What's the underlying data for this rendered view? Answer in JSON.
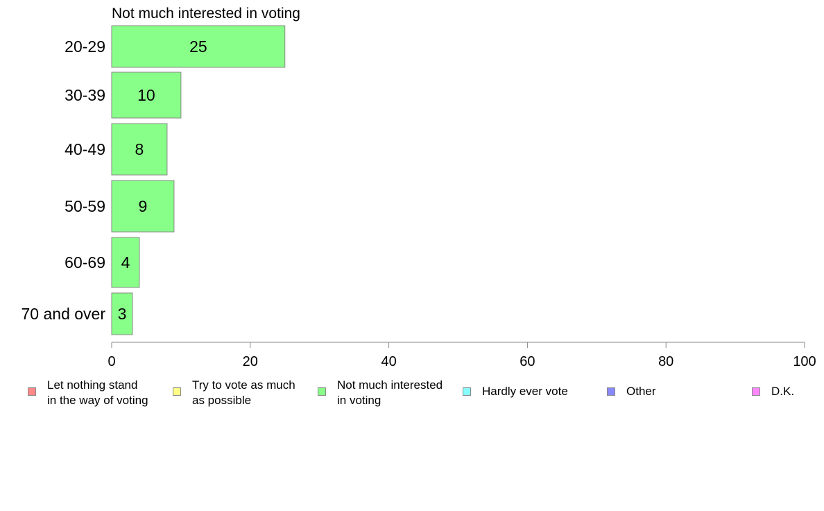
{
  "chart_data": {
    "type": "bar",
    "orientation": "horizontal",
    "title": "Not much interested in voting",
    "categories": [
      "20-29",
      "30-39",
      "40-49",
      "50-59",
      "60-69",
      "70 and over"
    ],
    "values": [
      25,
      10,
      8,
      9,
      4,
      3
    ],
    "value_labels": [
      "25",
      "10",
      "8",
      "9",
      "4",
      "3"
    ],
    "xlim": [
      0,
      100
    ],
    "xticks": [
      "0",
      "20",
      "40",
      "60",
      "80",
      "100"
    ],
    "xtick_values": [
      0,
      20,
      40,
      60,
      80,
      100
    ],
    "bar_color": "#88ff88",
    "grid": false,
    "legend_position": "bottom",
    "legend": [
      {
        "label": "Let nothing stand\nin the way of voting",
        "color": "#ff8888"
      },
      {
        "label": "Try to vote as much\nas possible",
        "color": "#ffff88"
      },
      {
        "label": "Not much interested\nin voting",
        "color": "#88ff88"
      },
      {
        "label": "Hardly ever vote",
        "color": "#88ffff"
      },
      {
        "label": "Other",
        "color": "#8888ff"
      },
      {
        "label": "D.K.",
        "color": "#ff88ff"
      }
    ]
  }
}
